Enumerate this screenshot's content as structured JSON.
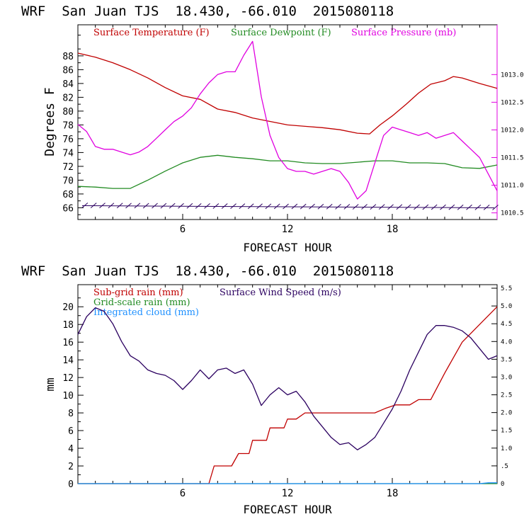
{
  "chart_data": [
    {
      "type": "line",
      "title": "WRF  San Juan TJS  18.430, -66.010  2015080118",
      "xlabel": "FORECAST HOUR",
      "ylabel": "Degrees F",
      "xlim": [
        0,
        24
      ],
      "ylim": [
        64.3,
        92.5
      ],
      "y2lim": [
        1010.38,
        1013.9
      ],
      "grid": false,
      "legend_position": "top",
      "x_ticks": [
        6,
        12,
        18
      ],
      "x_tick_labels": [
        "6",
        "12",
        "18"
      ],
      "y_ticks": [
        66,
        68,
        70,
        72,
        74,
        76,
        78,
        80,
        82,
        84,
        86,
        88
      ],
      "y_tick_labels": [
        "66",
        "68",
        "70",
        "72",
        "74",
        "76",
        "78",
        "80",
        "82",
        "84",
        "86",
        "88"
      ],
      "y2_ticks": [
        1010.5,
        1011.0,
        1011.5,
        1012.0,
        1012.5,
        1013.0
      ],
      "y2_tick_labels": [
        "1010.5",
        "1011.0",
        "1011.5",
        "1012.0",
        "1012.5",
        "1013.0"
      ],
      "series": [
        {
          "name": "Surface Temperature (F)",
          "color": "#c00000",
          "axis": "left",
          "x": [
            0,
            1,
            2,
            3,
            4,
            5,
            6,
            7,
            8,
            9,
            10,
            11,
            12,
            13,
            14,
            15,
            16,
            16.7,
            17.3,
            18,
            18.8,
            19.5,
            20.2,
            21,
            21.5,
            22,
            23,
            24
          ],
          "values": [
            88.4,
            87.8,
            87.0,
            86.0,
            84.8,
            83.4,
            82.2,
            81.7,
            80.3,
            79.8,
            79.0,
            78.5,
            78.0,
            77.8,
            77.6,
            77.3,
            76.8,
            76.7,
            78.0,
            79.3,
            81.0,
            82.6,
            83.9,
            84.4,
            85.0,
            84.8,
            84.0,
            83.3
          ]
        },
        {
          "name": "Surface Dewpoint (F)",
          "color": "#228b22",
          "axis": "left",
          "x": [
            0,
            1,
            2,
            3,
            4,
            5,
            6,
            7,
            8,
            9,
            10,
            11,
            12,
            13,
            14,
            15,
            16,
            17,
            18,
            19,
            20,
            21,
            22,
            23,
            24
          ],
          "values": [
            69.1,
            69.0,
            68.8,
            68.8,
            70.0,
            71.3,
            72.5,
            73.3,
            73.6,
            73.3,
            73.1,
            72.8,
            72.8,
            72.5,
            72.4,
            72.4,
            72.6,
            72.8,
            72.8,
            72.5,
            72.5,
            72.4,
            71.8,
            71.7,
            72.2
          ]
        },
        {
          "name": "Surface Pressure (mb)",
          "color": "#e000e0",
          "axis": "right",
          "x": [
            0,
            0.5,
            1,
            1.5,
            2,
            2.5,
            3,
            3.5,
            4,
            4.5,
            5,
            5.5,
            6,
            6.5,
            7,
            7.5,
            8,
            8.5,
            9,
            9.5,
            10,
            10.5,
            11,
            11.5,
            12,
            12.5,
            13,
            13.5,
            14,
            14.5,
            15,
            15.5,
            16,
            16.5,
            17,
            17.5,
            18,
            18.5,
            19,
            19.5,
            20,
            20.5,
            21,
            21.5,
            22,
            22.5,
            23,
            23.5,
            24
          ],
          "values": [
            1012.1,
            1011.97,
            1011.7,
            1011.65,
            1011.65,
            1011.6,
            1011.55,
            1011.6,
            1011.7,
            1011.85,
            1012.0,
            1012.15,
            1012.25,
            1012.4,
            1012.65,
            1012.85,
            1013.0,
            1013.05,
            1013.05,
            1013.35,
            1013.6,
            1012.6,
            1011.9,
            1011.5,
            1011.3,
            1011.25,
            1011.25,
            1011.2,
            1011.25,
            1011.3,
            1011.25,
            1011.05,
            1010.75,
            1010.9,
            1011.4,
            1011.9,
            1012.05,
            1012.0,
            1011.95,
            1011.9,
            1011.95,
            1011.85,
            1011.9,
            1011.95,
            1011.8,
            1011.65,
            1011.5,
            1011.2,
            1010.9
          ]
        }
      ]
    },
    {
      "type": "line",
      "title": "WRF  San Juan TJS  18.430, -66.010  2015080118",
      "xlabel": "FORECAST HOUR",
      "ylabel": "mm",
      "xlim": [
        0,
        24
      ],
      "ylim": [
        0,
        22.5
      ],
      "y2lim": [
        0,
        5.6
      ],
      "grid": false,
      "legend_position": "top-left",
      "x_ticks": [
        6,
        12,
        18
      ],
      "x_tick_labels": [
        "6",
        "12",
        "18"
      ],
      "y_ticks": [
        0,
        2,
        4,
        6,
        8,
        10,
        12,
        14,
        16,
        18,
        20
      ],
      "y_tick_labels": [
        "0",
        "2",
        "4",
        "6",
        "8",
        "10",
        "12",
        "14",
        "16",
        "18",
        "20"
      ],
      "y2_ticks": [
        0,
        0.5,
        1.0,
        1.5,
        2.0,
        2.5,
        3.0,
        3.5,
        4.0,
        4.5,
        5.0,
        5.5
      ],
      "y2_tick_labels": [
        "0",
        ".5",
        "1.0",
        "1.5",
        "2.0",
        "2.5",
        "3.0",
        "3.5",
        "4.0",
        "4.5",
        "5.0",
        "5.5"
      ],
      "series": [
        {
          "name": "Sub-grid rain (mm)",
          "color": "#c00000",
          "axis": "left",
          "x": [
            0,
            7.5,
            7.8,
            8.8,
            9.2,
            9.8,
            10.0,
            10.8,
            11.0,
            11.8,
            12.0,
            12.5,
            13.0,
            17.0,
            17.6,
            18.2,
            19.0,
            19.5,
            20.2,
            21.0,
            22.0,
            23.0,
            24.0
          ],
          "values": [
            0,
            0,
            2.0,
            2.0,
            3.4,
            3.4,
            4.9,
            4.9,
            6.3,
            6.3,
            7.3,
            7.3,
            8.0,
            8.0,
            8.5,
            8.9,
            8.9,
            9.5,
            9.5,
            12.5,
            16.0,
            18.0,
            20.0
          ]
        },
        {
          "name": "Grid-scale rain (mm)",
          "color": "#228b22",
          "axis": "left",
          "x": [
            0,
            24
          ],
          "values": [
            0,
            0
          ]
        },
        {
          "name": "Integrated cloud (mm)",
          "color": "#1e90ff",
          "axis": "left",
          "x": [
            0,
            23.0,
            23.5,
            24.0
          ],
          "values": [
            0,
            0,
            0.1,
            0.1
          ]
        },
        {
          "name": "Surface Wind Speed (m/s)",
          "color": "#2b0060",
          "axis": "right",
          "x": [
            0,
            0.5,
            1,
            1.5,
            2,
            2.5,
            3,
            3.5,
            4,
            4.5,
            5,
            5.5,
            6,
            6.5,
            7,
            7.5,
            8,
            8.5,
            9,
            9.5,
            10,
            10.5,
            11,
            11.5,
            12,
            12.5,
            13,
            13.5,
            14,
            14.5,
            15,
            15.5,
            16,
            16.5,
            17,
            17.5,
            18,
            18.5,
            19,
            19.5,
            20,
            20.5,
            21,
            21.5,
            22,
            22.5,
            23,
            23.5,
            24
          ],
          "values": [
            4.2,
            4.7,
            4.95,
            4.85,
            4.5,
            4.0,
            3.6,
            3.45,
            3.2,
            3.1,
            3.05,
            2.9,
            2.65,
            2.9,
            3.2,
            2.95,
            3.2,
            3.25,
            3.1,
            3.2,
            2.8,
            2.2,
            2.5,
            2.7,
            2.5,
            2.6,
            2.3,
            1.9,
            1.6,
            1.3,
            1.1,
            1.15,
            0.95,
            1.1,
            1.3,
            1.7,
            2.1,
            2.6,
            3.2,
            3.7,
            4.2,
            4.45,
            4.45,
            4.4,
            4.3,
            4.1,
            3.8,
            3.5,
            3.6
          ]
        }
      ]
    }
  ]
}
